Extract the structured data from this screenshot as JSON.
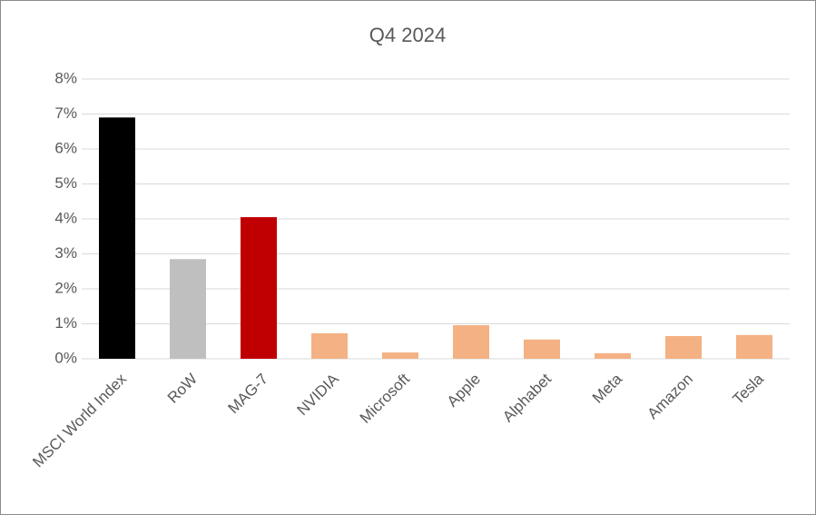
{
  "chart_data": {
    "type": "bar",
    "title": "Q4 2024",
    "categories": [
      "MSCI World Index",
      "RoW",
      "MAG-7",
      "NVIDIA",
      "Microsoft",
      "Apple",
      "Alphabet",
      "Meta",
      "Amazon",
      "Tesla"
    ],
    "values": [
      6.9,
      2.85,
      4.05,
      0.73,
      0.18,
      0.96,
      0.55,
      0.16,
      0.65,
      0.68
    ],
    "colors": [
      "#000000",
      "#bfbfbf",
      "#c00000",
      "#f4b183",
      "#f4b183",
      "#f4b183",
      "#f4b183",
      "#f4b183",
      "#f4b183",
      "#f4b183"
    ],
    "ylim": [
      0,
      8
    ],
    "yticks": [
      {
        "value": 0,
        "label": "0%"
      },
      {
        "value": 1,
        "label": "1%"
      },
      {
        "value": 2,
        "label": "2%"
      },
      {
        "value": 3,
        "label": "3%"
      },
      {
        "value": 4,
        "label": "4%"
      },
      {
        "value": 5,
        "label": "5%"
      },
      {
        "value": 6,
        "label": "6%"
      },
      {
        "value": 7,
        "label": "7%"
      },
      {
        "value": 8,
        "label": "8%"
      }
    ],
    "grid": true
  }
}
